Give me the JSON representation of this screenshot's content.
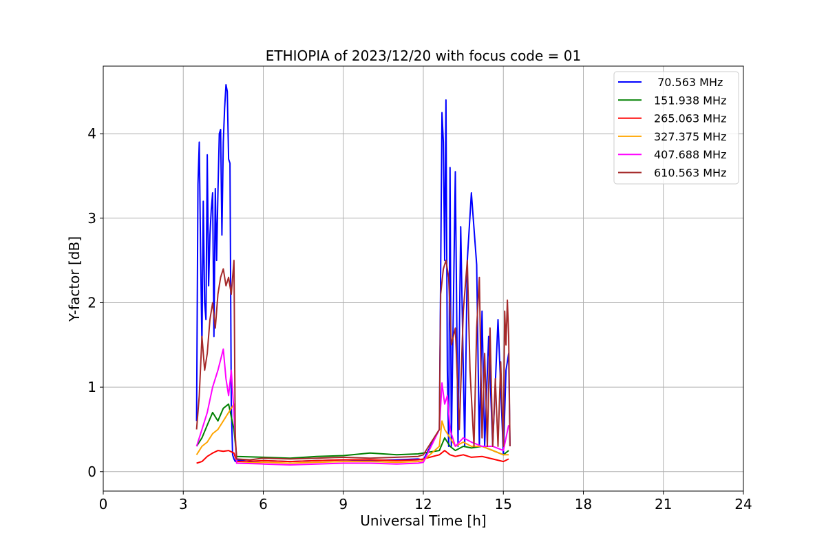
{
  "chart_data": {
    "type": "line",
    "title": "ETHIOPIA of 2023/12/20 with focus code = 01",
    "xlabel": "Universal Time [h]",
    "ylabel": "Y-factor [dB]",
    "xlim": [
      0,
      24
    ],
    "ylim": [
      -0.23,
      4.8
    ],
    "xticks": [
      0,
      3,
      6,
      9,
      12,
      15,
      18,
      21,
      24
    ],
    "xtick_labels": [
      "0",
      "3",
      "6",
      "9",
      "12",
      "15",
      "18",
      "21",
      "24"
    ],
    "yticks": [
      0,
      1,
      2,
      3,
      4
    ],
    "ytick_labels": [
      "0",
      "1",
      "2",
      "3",
      "4"
    ],
    "grid": true,
    "legend_position": "top-right",
    "series": [
      {
        "name": " 70.563 MHz",
        "color": "#0000ff",
        "x": [
          3.5,
          3.55,
          3.6,
          3.65,
          3.7,
          3.75,
          3.8,
          3.85,
          3.9,
          3.95,
          4.0,
          4.05,
          4.1,
          4.15,
          4.2,
          4.25,
          4.3,
          4.35,
          4.4,
          4.45,
          4.5,
          4.55,
          4.6,
          4.65,
          4.7,
          4.75,
          4.8,
          4.85,
          4.9,
          4.95,
          5.0,
          5.5,
          6.0,
          7.0,
          8.0,
          9.0,
          10.0,
          11.0,
          11.8,
          12.0,
          12.6,
          12.7,
          12.75,
          12.8,
          12.85,
          12.9,
          12.95,
          13.0,
          13.05,
          13.2,
          13.3,
          13.4,
          13.55,
          13.65,
          13.8,
          14.0,
          14.1,
          14.2,
          14.3,
          14.45,
          14.6,
          14.8,
          15.0,
          15.1,
          15.2,
          15.25
        ],
        "y": [
          0.6,
          3.4,
          3.9,
          2.6,
          1.5,
          3.2,
          2.0,
          1.8,
          3.75,
          2.2,
          2.8,
          3.1,
          3.3,
          1.6,
          3.35,
          2.5,
          3.3,
          4.0,
          4.05,
          2.8,
          3.9,
          4.3,
          4.58,
          4.5,
          3.7,
          3.65,
          0.8,
          0.2,
          0.15,
          0.12,
          0.14,
          0.12,
          0.13,
          0.12,
          0.13,
          0.14,
          0.13,
          0.14,
          0.15,
          0.14,
          0.5,
          4.25,
          3.9,
          2.5,
          4.4,
          1.2,
          0.3,
          3.6,
          0.3,
          3.55,
          0.3,
          2.9,
          0.3,
          2.5,
          3.3,
          2.45,
          0.3,
          1.9,
          0.3,
          1.6,
          0.3,
          1.8,
          0.2,
          1.2,
          1.4,
          0.3
        ]
      },
      {
        "name": "151.938 MHz",
        "color": "#008000",
        "x": [
          3.5,
          3.7,
          3.9,
          4.1,
          4.3,
          4.5,
          4.7,
          4.9,
          5.0,
          6.0,
          7.0,
          8.0,
          9.0,
          10.0,
          11.0,
          11.8,
          12.0,
          12.6,
          12.8,
          13.0,
          13.2,
          13.5,
          13.8,
          14.2,
          14.6,
          15.0,
          15.2
        ],
        "y": [
          0.3,
          0.4,
          0.55,
          0.7,
          0.6,
          0.75,
          0.8,
          0.5,
          0.18,
          0.17,
          0.16,
          0.18,
          0.19,
          0.22,
          0.2,
          0.21,
          0.22,
          0.25,
          0.4,
          0.3,
          0.25,
          0.3,
          0.28,
          0.3,
          0.25,
          0.2,
          0.25
        ]
      },
      {
        "name": "265.063 MHz",
        "color": "#ff0000",
        "x": [
          3.5,
          3.7,
          3.9,
          4.1,
          4.3,
          4.5,
          4.7,
          4.9,
          5.0,
          6.0,
          7.0,
          8.0,
          9.0,
          10.0,
          11.0,
          11.8,
          12.0,
          12.6,
          12.8,
          13.0,
          13.2,
          13.5,
          13.8,
          14.2,
          14.6,
          15.0,
          15.2
        ],
        "y": [
          0.1,
          0.12,
          0.18,
          0.22,
          0.25,
          0.24,
          0.25,
          0.22,
          0.12,
          0.13,
          0.12,
          0.13,
          0.14,
          0.14,
          0.13,
          0.14,
          0.15,
          0.2,
          0.25,
          0.2,
          0.18,
          0.2,
          0.17,
          0.18,
          0.15,
          0.12,
          0.15
        ]
      },
      {
        "name": "327.375 MHz",
        "color": "#ffa500",
        "x": [
          3.5,
          3.7,
          3.9,
          4.1,
          4.3,
          4.5,
          4.7,
          4.9,
          5.0,
          6.0,
          7.0,
          8.0,
          9.0,
          10.0,
          11.0,
          11.8,
          12.0,
          12.6,
          12.7,
          12.8,
          13.0,
          13.2,
          13.5,
          13.8,
          14.2,
          14.6,
          15.0,
          15.2
        ],
        "y": [
          0.2,
          0.3,
          0.35,
          0.45,
          0.5,
          0.6,
          0.7,
          0.8,
          0.1,
          0.11,
          0.1,
          0.11,
          0.12,
          0.12,
          0.11,
          0.12,
          0.13,
          0.3,
          0.6,
          0.5,
          0.4,
          0.3,
          0.35,
          0.3,
          0.3,
          0.25,
          0.2,
          0.2
        ]
      },
      {
        "name": "407.688 MHz",
        "color": "#ff00ff",
        "x": [
          3.5,
          3.7,
          3.9,
          4.1,
          4.3,
          4.5,
          4.6,
          4.7,
          4.8,
          4.9,
          5.0,
          6.0,
          7.0,
          8.0,
          9.0,
          10.0,
          11.0,
          11.8,
          12.0,
          12.6,
          12.7,
          12.8,
          12.9,
          13.0,
          13.2,
          13.5,
          13.8,
          14.2,
          14.6,
          15.0,
          15.2
        ],
        "y": [
          0.3,
          0.5,
          0.7,
          1.0,
          1.2,
          1.45,
          1.1,
          0.9,
          1.2,
          0.7,
          0.1,
          0.09,
          0.08,
          0.09,
          0.1,
          0.1,
          0.09,
          0.1,
          0.11,
          0.5,
          1.05,
          0.8,
          0.9,
          0.5,
          0.3,
          0.4,
          0.35,
          0.3,
          0.3,
          0.25,
          0.55
        ]
      },
      {
        "name": "610.563 MHz",
        "color": "#a52a2a",
        "x": [
          3.5,
          3.6,
          3.7,
          3.8,
          3.9,
          4.0,
          4.1,
          4.2,
          4.3,
          4.4,
          4.5,
          4.6,
          4.7,
          4.8,
          4.9,
          4.95,
          5.0,
          5.5,
          6.0,
          7.0,
          8.0,
          9.0,
          10.0,
          11.0,
          11.8,
          12.0,
          12.6,
          12.65,
          12.75,
          12.85,
          12.95,
          13.05,
          13.2,
          13.35,
          13.5,
          13.65,
          13.75,
          13.9,
          14.0,
          14.1,
          14.2,
          14.3,
          14.4,
          14.5,
          14.6,
          14.7,
          14.8,
          14.9,
          15.0,
          15.05,
          15.1,
          15.15,
          15.2,
          15.25
        ],
        "y": [
          0.5,
          0.9,
          1.6,
          1.2,
          1.4,
          1.8,
          2.0,
          1.7,
          2.1,
          2.3,
          2.4,
          2.2,
          2.3,
          2.1,
          2.5,
          0.4,
          0.15,
          0.14,
          0.16,
          0.15,
          0.16,
          0.17,
          0.16,
          0.17,
          0.18,
          0.2,
          0.5,
          2.1,
          2.4,
          2.5,
          2.3,
          1.5,
          1.7,
          0.5,
          1.9,
          2.5,
          1.2,
          0.3,
          1.7,
          2.3,
          0.4,
          1.4,
          0.3,
          1.7,
          0.3,
          1.1,
          0.3,
          1.3,
          0.3,
          1.9,
          1.5,
          2.03,
          1.6,
          0.3
        ]
      }
    ]
  }
}
